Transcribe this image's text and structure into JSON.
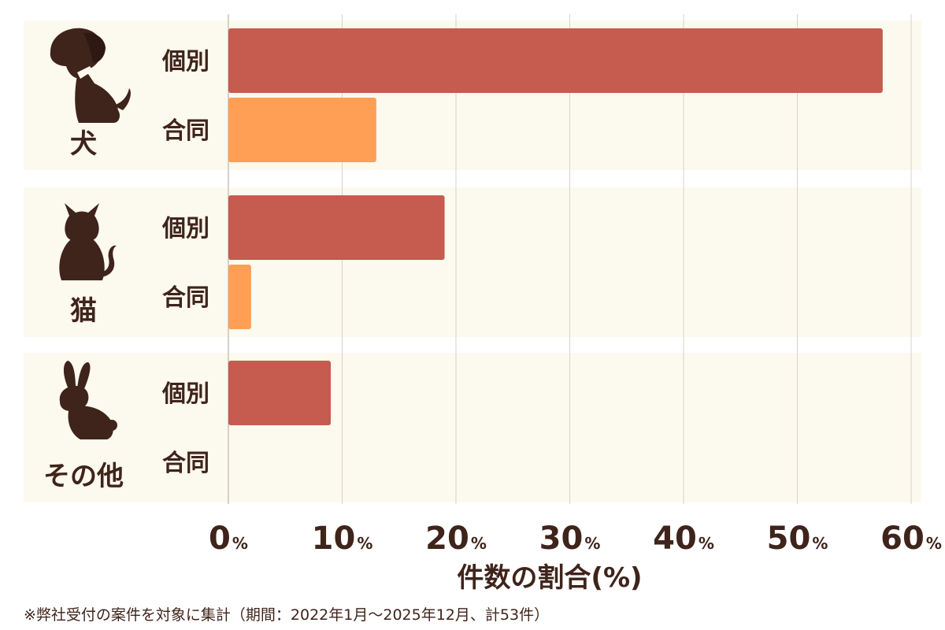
{
  "chart_data": {
    "type": "bar",
    "orientation": "horizontal",
    "groups": [
      {
        "name": "犬",
        "icon": "dog-icon",
        "bars": [
          {
            "label": "個別",
            "value": 57.5
          },
          {
            "label": "合同",
            "value": 13
          }
        ]
      },
      {
        "name": "猫",
        "icon": "cat-icon",
        "bars": [
          {
            "label": "個別",
            "value": 19
          },
          {
            "label": "合同",
            "value": 2
          }
        ]
      },
      {
        "name": "その他",
        "icon": "rabbit-icon",
        "bars": [
          {
            "label": "個別",
            "value": 9
          },
          {
            "label": "合同",
            "value": 0
          }
        ]
      }
    ],
    "xlim": [
      0,
      60
    ],
    "ticks": [
      {
        "num": "0",
        "unit": "%"
      },
      {
        "num": "10",
        "unit": "%"
      },
      {
        "num": "20",
        "unit": "%"
      },
      {
        "num": "30",
        "unit": "%"
      },
      {
        "num": "40",
        "unit": "%"
      },
      {
        "num": "50",
        "unit": "%"
      },
      {
        "num": "60",
        "unit": "%"
      }
    ],
    "xlabel": "件数の割合(%)",
    "grid": true
  },
  "colors": {
    "individual": "#c65b4f",
    "joint": "#ff9f55",
    "panel": "#fcf9ee",
    "grid": "#d8d3c8",
    "text": "#3f241b"
  },
  "footnote": "※弊社受付の案件を対象に集計（期間：2022年1月～2025年12月、計53件）"
}
